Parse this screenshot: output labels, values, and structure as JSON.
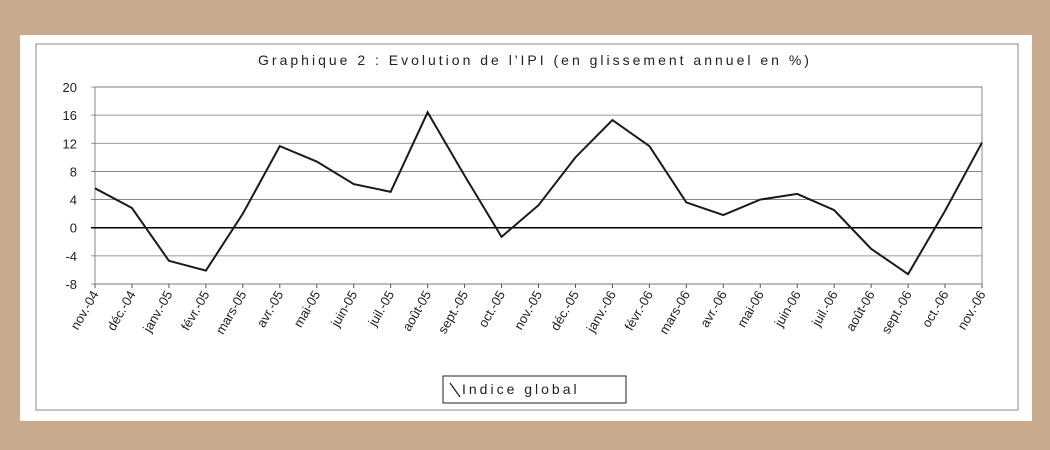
{
  "chart_data": {
    "type": "line",
    "title": "Graphique 2 : Evolution de l'IPI (en glissement annuel en %)",
    "categories": [
      "nov.-04",
      "déc.-04",
      "janv.-05",
      "févr.-05",
      "mars-05",
      "avr.-05",
      "mai-05",
      "juin-05",
      "juil.-05",
      "août-05",
      "sept.-05",
      "oct.-05",
      "nov.-05",
      "déc.-05",
      "janv.-06",
      "févr.-06",
      "mars-06",
      "avr.-06",
      "mai-06",
      "juin-06",
      "juil.-06",
      "août-06",
      "sept.-06",
      "oct.-06",
      "nov.-06"
    ],
    "series": [
      {
        "name": "Indice global",
        "color": "#1a1a1a",
        "values": [
          5.6,
          2.8,
          -4.7,
          -6.1,
          2.0,
          11.6,
          9.4,
          6.2,
          5.1,
          16.4,
          7.4,
          -1.3,
          3.2,
          10.0,
          15.3,
          11.6,
          3.6,
          1.8,
          4.0,
          4.8,
          2.5,
          -3.0,
          -6.6,
          2.4,
          12.1
        ]
      }
    ],
    "ylim": [
      -8,
      20
    ],
    "yticks": [
      -8,
      -4,
      0,
      4,
      8,
      12,
      16,
      20
    ],
    "grid": true
  }
}
